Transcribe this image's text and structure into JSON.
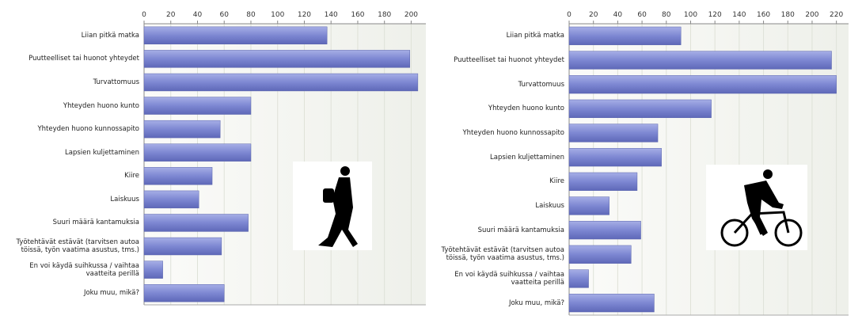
{
  "chart_data": [
    {
      "type": "barh",
      "categories": [
        "Liian pitkä matka",
        "Puutteelliset tai huonot yhteydet",
        "Turvattomuus",
        "Yhteyden huono kunto",
        "Yhteyden huono kunnossapito",
        "Lapsien kuljettaminen",
        "Kiire",
        "Laiskuus",
        "Suuri määrä kantamuksia",
        "Työtehtävät estävät (tarvitsen autoa töissä, työn vaatima asustus, tms.)",
        "En voi käydä suihkussa / vaihtaa vaatteita perillä",
        "Joku muu, mikä?"
      ],
      "values": [
        137,
        199,
        205,
        80,
        57,
        80,
        51,
        41,
        78,
        58,
        14,
        60
      ],
      "color": "#7d87d2",
      "xlim": [
        0,
        211
      ],
      "xticks": [
        0,
        20,
        40,
        60,
        80,
        100,
        120,
        140,
        160,
        180,
        200
      ],
      "grid": true
    },
    {
      "type": "barh",
      "categories": [
        "Liian pitkä matka",
        "Puutteelliset tai huonot yhteydet",
        "Turvattomuus",
        "Yhteyden huono kunto",
        "Yhteyden huono kunnossapito",
        "Lapsien kuljettaminen",
        "Kiire",
        "Laiskuus",
        "Suuri määrä kantamuksia",
        "Työtehtävät estävät (tarvitsen autoa töissä, työn vaatima asustus, tms.)",
        "En voi käydä suihkussa / vaihtaa vaatteita perillä",
        "Joku muu, mikä?"
      ],
      "values": [
        92,
        216,
        220,
        117,
        73,
        76,
        56,
        33,
        59,
        51,
        16,
        70
      ],
      "color": "#7d87d2",
      "xlim": [
        0,
        230
      ],
      "xticks": [
        0,
        20,
        40,
        60,
        80,
        100,
        120,
        140,
        160,
        180,
        200,
        220
      ],
      "grid": true
    }
  ]
}
